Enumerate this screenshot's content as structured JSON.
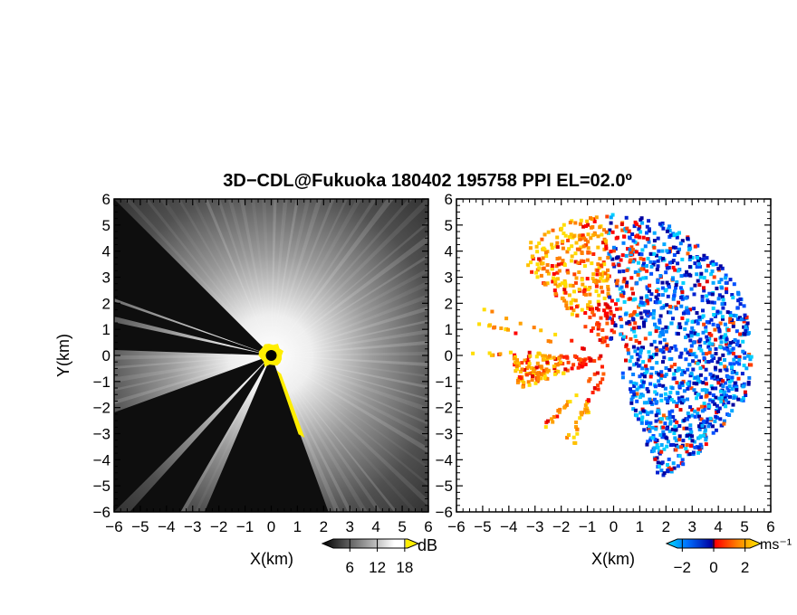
{
  "chart_data": [
    {
      "type": "heatmap",
      "title": "3D−CDL@Fukuoka 180402 195758 PPI EL=02.0º",
      "xlabel": "X(km)",
      "ylabel": "Y(km)",
      "xlim": [
        -6,
        6
      ],
      "ylim": [
        -6,
        6
      ],
      "x_ticks": [
        "−6",
        "−5",
        "−4",
        "−3",
        "−2",
        "−1",
        "0",
        "1",
        "2",
        "3",
        "4",
        "5",
        "6"
      ],
      "y_ticks": [
        "6",
        "5",
        "4",
        "3",
        "2",
        "1",
        "0",
        "−1",
        "−2",
        "−3",
        "−4",
        "−5",
        "−6"
      ],
      "colorbar": {
        "unit": "dB",
        "ticks": [
          "6",
          "12",
          "18"
        ],
        "tick_values": [
          6,
          12,
          18
        ],
        "range": [
          0,
          21
        ],
        "colors": [
          "#000000",
          "#ffffff",
          "#ffee00"
        ]
      },
      "blocked_sectors_deg": [
        [
          135,
          160
        ],
        [
          161,
          166
        ],
        [
          168,
          178
        ],
        [
          200,
          225
        ],
        [
          228,
          240
        ],
        [
          247,
          290
        ]
      ],
      "scan_center_km": [
        0,
        0
      ]
    },
    {
      "type": "heatmap",
      "title": "",
      "xlabel": "X(km)",
      "ylabel": "",
      "xlim": [
        -6,
        6
      ],
      "ylim": [
        -6,
        6
      ],
      "x_ticks": [
        "−6",
        "−5",
        "−4",
        "−3",
        "−2",
        "−1",
        "0",
        "1",
        "2",
        "3",
        "4",
        "5",
        "6"
      ],
      "y_ticks": [
        "6",
        "5",
        "4",
        "3",
        "2",
        "1",
        "0",
        "−1",
        "−2",
        "−3",
        "−4",
        "−5",
        "−6"
      ],
      "colorbar": {
        "unit": "ms⁻¹",
        "ticks": [
          "−2",
          "0",
          "2"
        ],
        "tick_values": [
          -2,
          0,
          2
        ],
        "range": [
          -3,
          3
        ],
        "colors": [
          "#00e0ff",
          "#0050ff",
          "#0000a0",
          "#ff0000",
          "#ff8000",
          "#ffee00"
        ]
      },
      "blocked_sectors_deg": [
        [
          135,
          160
        ],
        [
          161,
          166
        ],
        [
          168,
          178
        ],
        [
          200,
          225
        ],
        [
          228,
          240
        ],
        [
          247,
          290
        ]
      ],
      "coverage_max_range_km": 5.4
    }
  ]
}
